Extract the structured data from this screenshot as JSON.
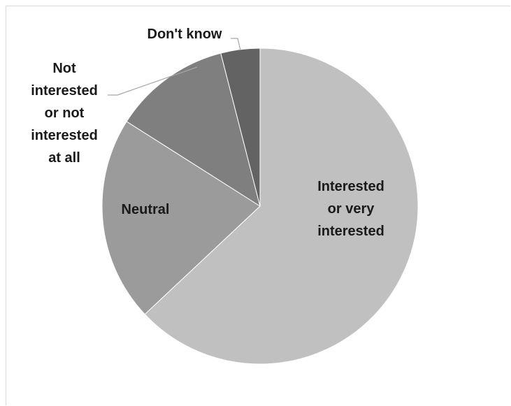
{
  "chart_data": {
    "type": "pie",
    "title": "",
    "start_angle_deg": 0,
    "direction": "clockwise",
    "slices": [
      {
        "label": "Interested or very interested",
        "lines": [
          "Interested",
          "or very",
          "interested"
        ],
        "value": 63,
        "color": "#c0c0c0"
      },
      {
        "label": "Neutral",
        "lines": [
          "Neutral"
        ],
        "value": 21,
        "color": "#9b9b9b"
      },
      {
        "label": "Not interested or not interested at all",
        "lines": [
          "Not",
          "interested",
          "or not",
          "interested",
          "at all"
        ],
        "value": 12,
        "color": "#7f7f7f"
      },
      {
        "label": "Don't know",
        "lines": [
          "Don't know"
        ],
        "value": 4,
        "color": "#636363"
      }
    ]
  }
}
